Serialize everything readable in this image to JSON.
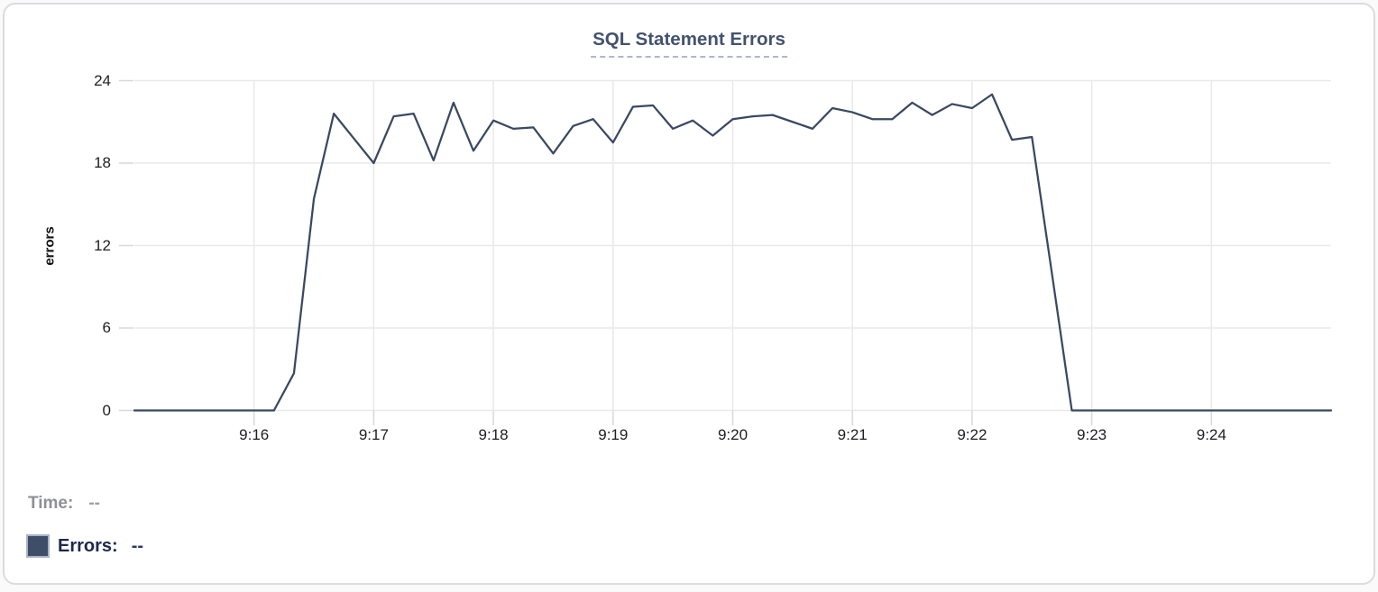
{
  "chart_data": {
    "type": "line",
    "title": "SQL Statement Errors",
    "xlabel": "",
    "ylabel": "errors",
    "ylim": [
      0,
      24
    ],
    "y_ticks": [
      0,
      6,
      12,
      18,
      24
    ],
    "x_ticks": [
      "9:16",
      "9:17",
      "9:18",
      "9:19",
      "9:20",
      "9:21",
      "9:22",
      "9:23",
      "9:24"
    ],
    "x_range": [
      "9:15:00",
      "9:25:00"
    ],
    "interval_seconds": 10,
    "grid": true,
    "legend_position": "bottom-left",
    "series": [
      {
        "name": "Errors",
        "color": "#3a4862",
        "x": [
          "9:15:00",
          "9:15:10",
          "9:15:20",
          "9:15:30",
          "9:15:40",
          "9:15:50",
          "9:16:00",
          "9:16:10",
          "9:16:20",
          "9:16:30",
          "9:16:40",
          "9:16:50",
          "9:17:00",
          "9:17:10",
          "9:17:20",
          "9:17:30",
          "9:17:40",
          "9:17:50",
          "9:18:00",
          "9:18:10",
          "9:18:20",
          "9:18:30",
          "9:18:40",
          "9:18:50",
          "9:19:00",
          "9:19:10",
          "9:19:20",
          "9:19:30",
          "9:19:40",
          "9:19:50",
          "9:20:00",
          "9:20:10",
          "9:20:20",
          "9:20:30",
          "9:20:40",
          "9:20:50",
          "9:21:00",
          "9:21:10",
          "9:21:20",
          "9:21:30",
          "9:21:40",
          "9:21:50",
          "9:22:00",
          "9:22:10",
          "9:22:20",
          "9:22:30",
          "9:22:40",
          "9:22:50",
          "9:23:00",
          "9:23:10",
          "9:23:20",
          "9:23:30",
          "9:23:40",
          "9:23:50",
          "9:24:00",
          "9:24:10",
          "9:24:20",
          "9:24:30",
          "9:24:40",
          "9:24:50",
          "9:25:00"
        ],
        "values": [
          0,
          0,
          0,
          0,
          0,
          0,
          0,
          0,
          2.7,
          15.4,
          21.6,
          19.8,
          18,
          21.4,
          21.6,
          18.2,
          22.4,
          18.9,
          21.1,
          20.5,
          20.6,
          18.7,
          20.7,
          21.2,
          19.5,
          22.1,
          22.2,
          20.5,
          21.1,
          20,
          21.2,
          21.4,
          21.5,
          21,
          20.5,
          22,
          21.7,
          21.2,
          21.2,
          22.4,
          21.5,
          22.3,
          22,
          23,
          19.7,
          19.9,
          10,
          0,
          0,
          0,
          0,
          0,
          0,
          0,
          0,
          0,
          0,
          0,
          0,
          0,
          0
        ]
      }
    ]
  },
  "legend": {
    "time_label": "Time:",
    "time_value": "--",
    "errors_label": "Errors:",
    "errors_value": "--",
    "swatch_color": "#3e4d68",
    "swatch_border_color": "#aab4c6"
  },
  "colors": {
    "title": "#43526e",
    "title_underline": "#aeb8cc",
    "line": "#3a4862",
    "gridline": "#e9e9eb",
    "tick_mark": "#d8d8da",
    "tick_label": "#202124",
    "card_border": "#dcdcdf"
  }
}
